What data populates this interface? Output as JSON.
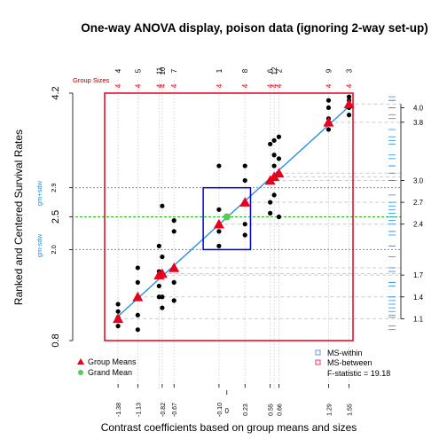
{
  "chart_data": {
    "type": "scatter",
    "title": "One-way ANOVA display, poison data (ignoring 2-way set-up)",
    "xlabel": "Contrast coefficients based on group means and sizes",
    "ylabel": "Ranked and Centered Survival Rates",
    "group_sizes_label": "Group Sizes",
    "grand_mean": 2.5,
    "ms_within_band": {
      "lower_label": "gm-sdw",
      "upper_label": "gm+sdw",
      "lower": 2.05,
      "upper": 2.9
    },
    "ms_between_box": {
      "xmin": -0.3,
      "xmax": 0.3,
      "ymin": 2.05,
      "ymax": 2.9
    },
    "f_statistic_text": "F-statistic =  19.18",
    "legend": [
      {
        "label": "Group Means",
        "symbol": "triangle",
        "color": "#e8001c"
      },
      {
        "label": "Grand Mean",
        "symbol": "circle",
        "color": "#55cc55"
      },
      {
        "label": "MS-within",
        "symbol": "square-open",
        "color": "#5599ee"
      },
      {
        "label": "MS-between",
        "symbol": "square-open",
        "color": "#ee3366"
      }
    ],
    "x_tick_labels": [
      "-1.38",
      "-1.13",
      "-0.82",
      "-0.67",
      "-0.10",
      "0.23",
      "0.55",
      "0.66",
      "1.29",
      "1.55"
    ],
    "x_axis_zero_label": "0",
    "y_tick_labels_left": [
      "0.8",
      "2.0",
      "2.5",
      "2.9",
      "4.2"
    ],
    "y_tick_labels_right": [
      "1.1",
      "1.4",
      "1.7",
      "2.4",
      "2.7",
      "3.0",
      "3.8",
      "4.0"
    ],
    "groups": [
      {
        "id": "4",
        "contrast": -1.38,
        "mean": 1.1,
        "size": 4,
        "points": [
          1.0,
          1.12,
          1.2,
          1.3
        ]
      },
      {
        "id": "5",
        "contrast": -1.13,
        "mean": 1.4,
        "size": 4,
        "points": [
          0.95,
          1.15,
          1.6,
          1.8
        ]
      },
      {
        "id": "11",
        "contrast": -0.86,
        "mean": 1.7,
        "size": 4,
        "points": [
          1.4,
          1.55,
          1.75,
          2.1
        ]
      },
      {
        "id": "10",
        "contrast": -0.82,
        "mean": 1.72,
        "size": 4,
        "points": [
          1.25,
          1.4,
          1.95,
          2.65
        ]
      },
      {
        "id": "7",
        "contrast": -0.67,
        "mean": 1.8,
        "size": 4,
        "points": [
          1.35,
          1.6,
          2.3,
          2.45
        ]
      },
      {
        "id": "1",
        "contrast": -0.1,
        "mean": 2.4,
        "size": 4,
        "points": [
          2.1,
          2.3,
          2.6,
          3.2
        ]
      },
      {
        "id": "8",
        "contrast": 0.23,
        "mean": 2.7,
        "size": 4,
        "points": [
          2.25,
          2.4,
          3.0,
          3.2
        ]
      },
      {
        "id": "6",
        "contrast": 0.55,
        "mean": 3.0,
        "size": 4,
        "points": [
          2.55,
          2.7,
          3.0,
          3.5
        ]
      },
      {
        "id": "12",
        "contrast": 0.6,
        "mean": 3.05,
        "size": 4,
        "points": [
          2.8,
          3.2,
          3.35,
          3.55
        ]
      },
      {
        "id": "2",
        "contrast": 0.66,
        "mean": 3.1,
        "size": 4,
        "points": [
          2.5,
          3.1,
          3.3,
          3.6
        ]
      },
      {
        "id": "9",
        "contrast": 1.29,
        "mean": 3.8,
        "size": 4,
        "points": [
          3.7,
          3.85,
          4.0,
          4.1
        ]
      },
      {
        "id": "3",
        "contrast": 1.55,
        "mean": 4.05,
        "size": 4,
        "points": [
          3.9,
          4.0,
          4.1,
          4.15
        ]
      }
    ],
    "xlim": [
      -1.55,
      1.6
    ],
    "ylim": [
      0.8,
      4.2
    ],
    "colors": {
      "frame": "#e8001c",
      "fit_line": "#2a8ee0",
      "grand_mean_line": "#22bb22",
      "sdw_lines": "#7777ff",
      "ms_box": "#0000cc",
      "points": "#000000",
      "group_ids": "#000000",
      "group_sizes": "#e8001c",
      "group_sizes_label": "#8b0000",
      "rug": "#2a8ee0",
      "side_labels": "#2a8ee0"
    }
  }
}
